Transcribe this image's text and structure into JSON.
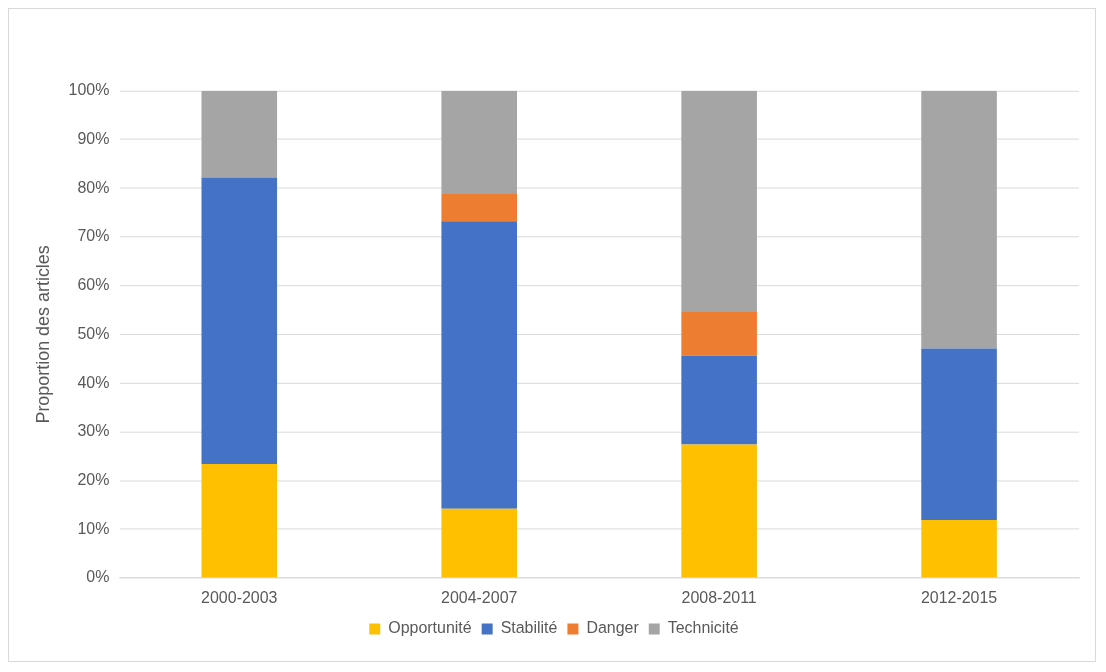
{
  "chart_data": {
    "type": "bar",
    "stacked": true,
    "ylabel": "Proportion des articles",
    "categories": [
      "2000-2003",
      "2004-2007",
      "2008-2011",
      "2012-2015"
    ],
    "series": [
      {
        "name": "Opportunité",
        "color": "#ffc000",
        "values": [
          23.4,
          14.2,
          27.4,
          11.9
        ]
      },
      {
        "name": "Stabilité",
        "color": "#4472c4",
        "values": [
          58.8,
          59.0,
          18.2,
          35.2
        ]
      },
      {
        "name": "Danger",
        "color": "#ed7d31",
        "values": [
          0,
          5.6,
          9.0,
          0
        ]
      },
      {
        "name": "Technicité",
        "color": "#a5a5a5",
        "values": [
          17.8,
          21.2,
          45.4,
          52.9
        ]
      }
    ],
    "ylim": [
      0,
      100
    ],
    "yticks": [
      {
        "value": 0,
        "label": "0%"
      },
      {
        "value": 10,
        "label": "10%"
      },
      {
        "value": 20,
        "label": "20%"
      },
      {
        "value": 30,
        "label": "30%"
      },
      {
        "value": 40,
        "label": "40%"
      },
      {
        "value": 50,
        "label": "50%"
      },
      {
        "value": 60,
        "label": "60%"
      },
      {
        "value": 70,
        "label": "70%"
      },
      {
        "value": 80,
        "label": "80%"
      },
      {
        "value": 90,
        "label": "90%"
      },
      {
        "value": 100,
        "label": "100%"
      }
    ],
    "grid": "y",
    "legend": "bottom"
  }
}
